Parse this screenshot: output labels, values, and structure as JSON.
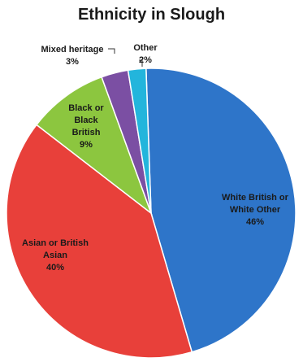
{
  "chart_data": {
    "type": "pie",
    "title": "Ethnicity in Slough",
    "slices": [
      {
        "label": "White British or White Other",
        "value": 46,
        "value_label": "46%",
        "color": "#2E75C9"
      },
      {
        "label": "Asian or British Asian",
        "value": 40,
        "value_label": "40%",
        "color": "#E8403A"
      },
      {
        "label": "Black or Black British",
        "value": 9,
        "value_label": "9%",
        "color": "#8CC63F"
      },
      {
        "label": "Mixed heritage",
        "value": 3,
        "value_label": "3%",
        "color": "#7B4FA3"
      },
      {
        "label": "Other",
        "value": 2,
        "value_label": "2%",
        "color": "#23B5DC"
      }
    ],
    "legend": "none",
    "label_placement": "on-slice-and-outside"
  }
}
